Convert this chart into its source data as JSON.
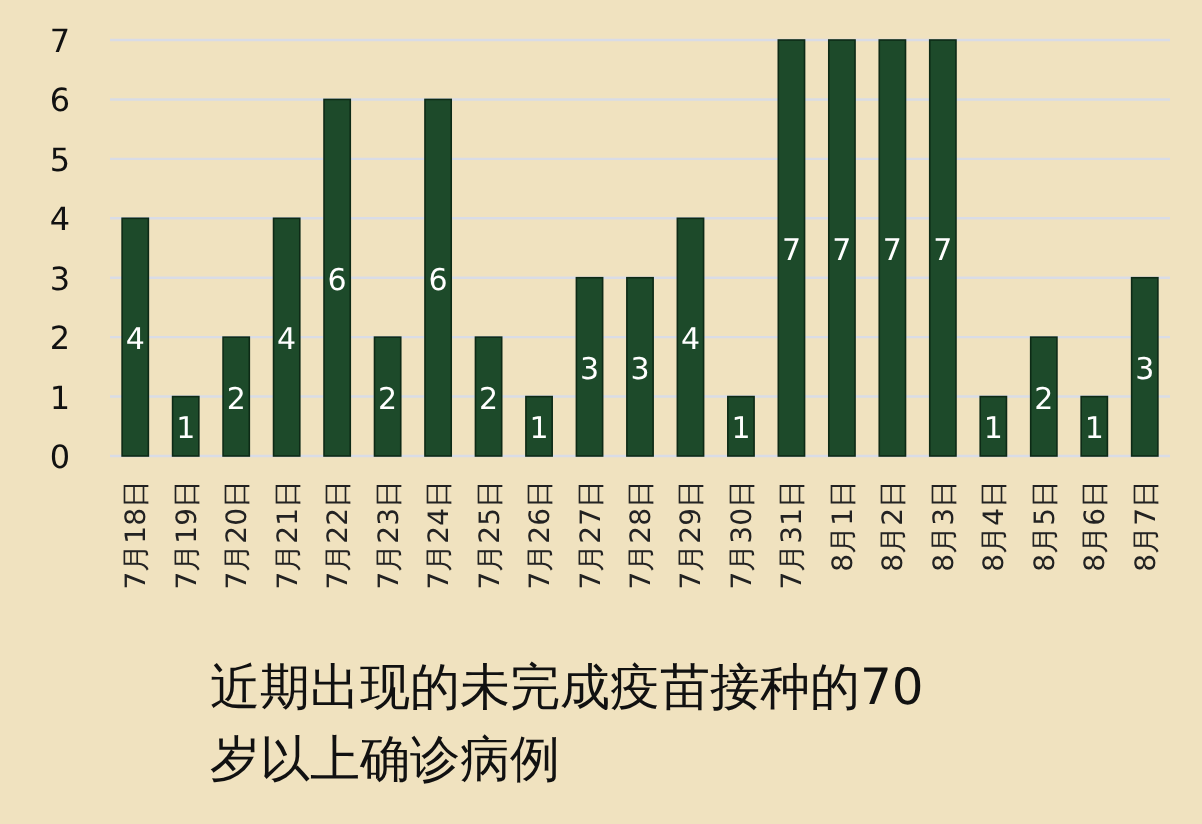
{
  "chart_data": {
    "type": "bar",
    "title": "近期出现的未完成疫苗接种的70岁以上确诊病例",
    "categories": [
      "7月18日",
      "7月19日",
      "7月20日",
      "7月21日",
      "7月22日",
      "7月23日",
      "7月24日",
      "7月25日",
      "7月26日",
      "7月27日",
      "7月28日",
      "7月29日",
      "7月30日",
      "7月31日",
      "8月1日",
      "8月2日",
      "8月3日",
      "8月4日",
      "8月5日",
      "8月6日",
      "8月7日"
    ],
    "values": [
      4,
      1,
      2,
      4,
      6,
      2,
      6,
      2,
      1,
      3,
      3,
      4,
      1,
      7,
      7,
      7,
      7,
      1,
      2,
      1,
      3
    ],
    "color": "#1d4a2a",
    "ylim": [
      0,
      7
    ],
    "yticks": [
      0,
      1,
      2,
      3,
      4,
      5,
      6,
      7
    ],
    "grid": "y",
    "data_labels": true
  }
}
